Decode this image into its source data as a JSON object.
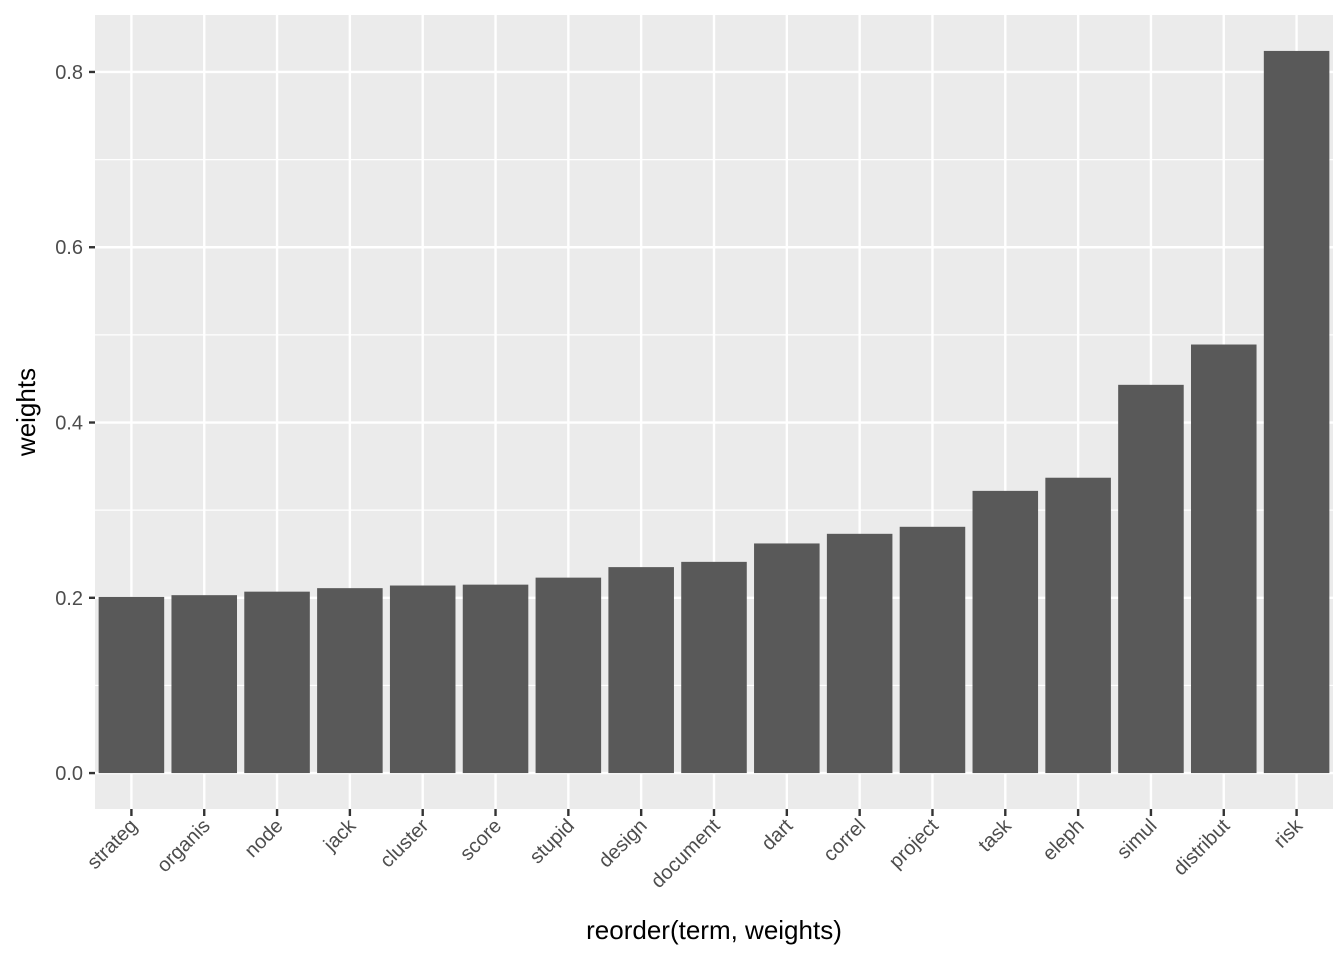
{
  "chart_data": {
    "type": "bar",
    "title": "",
    "xlabel": "reorder(term, weights)",
    "ylabel": "weights",
    "categories": [
      "strateg",
      "organis",
      "node",
      "jack",
      "cluster",
      "score",
      "stupid",
      "design",
      "document",
      "dart",
      "correl",
      "project",
      "task",
      "eleph",
      "simul",
      "distribut",
      "risk"
    ],
    "values": [
      0.201,
      0.203,
      0.207,
      0.211,
      0.214,
      0.215,
      0.223,
      0.235,
      0.241,
      0.262,
      0.273,
      0.281,
      0.322,
      0.337,
      0.443,
      0.489,
      0.824
    ],
    "ylim": [
      -0.041,
      0.865
    ],
    "yticks": [
      0.0,
      0.2,
      0.4,
      0.6,
      0.8
    ],
    "ytick_labels": [
      "0.0",
      "0.2",
      "0.4",
      "0.6",
      "0.8"
    ],
    "grid": true,
    "legend": "none",
    "colors": {
      "bar": "#595959",
      "panel_background": "#ebebeb",
      "grid_major": "#ffffff",
      "tick_label": "#4d4d4d",
      "axis_title": "#000000"
    }
  }
}
